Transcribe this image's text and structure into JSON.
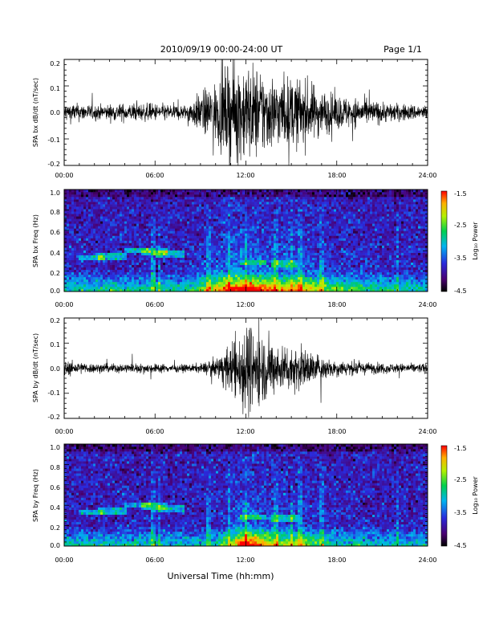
{
  "header": {
    "title": "2010/09/19  00:00-24:00 UT",
    "page": "Page 1/1"
  },
  "xlabel": "Universal Time (hh:mm)",
  "x_ticks": [
    "00:00",
    "06:00",
    "12:00",
    "18:00",
    "24:00"
  ],
  "colorbar": {
    "label": "Log₁₀ Power",
    "range": [
      -4.5,
      -1.5
    ],
    "ticks": [
      "-1.5",
      "-2.5",
      "-3.5",
      "-4.5"
    ]
  },
  "chart_data": [
    {
      "type": "line",
      "ylabel": "SPA bx dB/dt (nT/sec)",
      "xlim": [
        0,
        24
      ],
      "ylim": [
        -0.2,
        0.2
      ],
      "y_ticks": [
        "0.2",
        "0.1",
        "0.0",
        "-0.1",
        "-0.2"
      ],
      "envelope": {
        "x": [
          0,
          2,
          4,
          6,
          8,
          9,
          10,
          11,
          12,
          13,
          14,
          15,
          16,
          17,
          18,
          20,
          22,
          24
        ],
        "amplitude": [
          0.04,
          0.03,
          0.035,
          0.035,
          0.03,
          0.08,
          0.12,
          0.2,
          0.2,
          0.18,
          0.14,
          0.14,
          0.13,
          0.09,
          0.07,
          0.05,
          0.035,
          0.03
        ]
      }
    },
    {
      "type": "heatmap",
      "ylabel": "SPA bx Freq (Hz)",
      "xlim": [
        0,
        24
      ],
      "ylim": [
        0,
        1.0
      ],
      "y_ticks": [
        "1.0",
        "0.8",
        "0.6",
        "0.4",
        "0.2",
        "0.0"
      ],
      "colorbar_range": [
        -4.5,
        -1.5
      ]
    },
    {
      "type": "line",
      "ylabel": "SPA by dB/dt (nT/sec)",
      "xlim": [
        0,
        24
      ],
      "ylim": [
        -0.2,
        0.2
      ],
      "y_ticks": [
        "0.2",
        "0.1",
        "0.0",
        "-0.1",
        "-0.2"
      ],
      "envelope": {
        "x": [
          0,
          2,
          4,
          6,
          8,
          9,
          10,
          11,
          12,
          13,
          14,
          15,
          16,
          17,
          18,
          20,
          22,
          24
        ],
        "amplitude": [
          0.03,
          0.02,
          0.02,
          0.02,
          0.015,
          0.02,
          0.04,
          0.1,
          0.2,
          0.15,
          0.1,
          0.1,
          0.08,
          0.05,
          0.035,
          0.025,
          0.02,
          0.02
        ]
      }
    },
    {
      "type": "heatmap",
      "ylabel": "SPA by Freq (Hz)",
      "xlim": [
        0,
        24
      ],
      "ylim": [
        0,
        1.0
      ],
      "y_ticks": [
        "1.0",
        "0.8",
        "0.6",
        "0.4",
        "0.2",
        "0.0"
      ],
      "colorbar_range": [
        -4.5,
        -1.5
      ]
    }
  ]
}
